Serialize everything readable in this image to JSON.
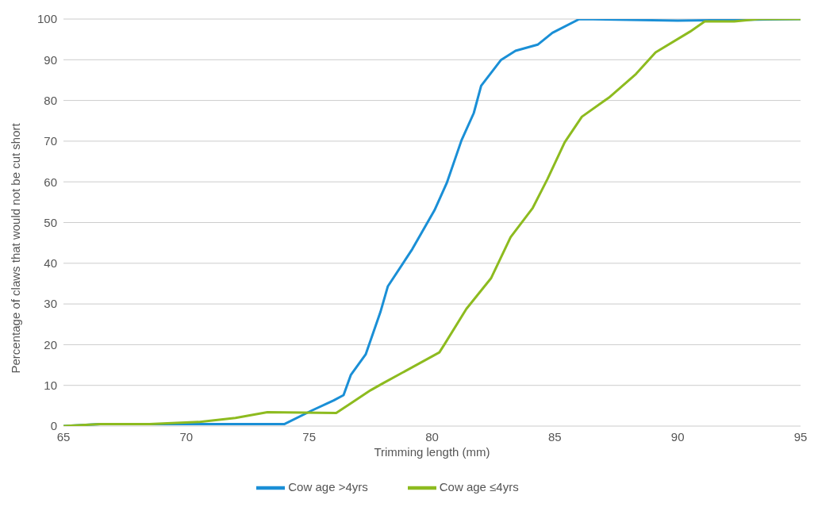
{
  "chart_data": {
    "type": "line",
    "xlabel": "Trimming length (mm)",
    "ylabel": "Percentage of claws that would not be cut short",
    "xlim": [
      65,
      95
    ],
    "xticks": [
      65,
      70,
      75,
      80,
      85,
      90,
      95
    ],
    "ylim": [
      0,
      100
    ],
    "yticks": [
      0,
      10,
      20,
      30,
      40,
      50,
      60,
      70,
      80,
      90,
      100
    ],
    "grid": "y",
    "legend": "bottom",
    "marker": "none",
    "line_style": "solid",
    "series": [
      {
        "name": "Cow age >4yrs",
        "color": "#1a8fd6",
        "x": [
          65,
          66.5,
          74,
          75.1,
          76,
          76.4,
          76.7,
          77.3,
          77.9,
          78.2,
          79.2,
          80.1,
          80.6,
          81.2,
          81.7,
          82,
          82.8,
          83.4,
          84.3,
          84.9,
          86,
          90,
          95
        ],
        "values": [
          0,
          0.5,
          0.5,
          3.8,
          6.3,
          7.6,
          12.6,
          17.6,
          28,
          34.3,
          43.5,
          53,
          59.7,
          70.2,
          76.9,
          83.6,
          89.9,
          92.2,
          93.7,
          96.6,
          100,
          99.6,
          100
        ]
      },
      {
        "name": "Cow age ≤4yrs",
        "color": "#8dbb1f",
        "x": [
          65,
          66.5,
          68.5,
          70.5,
          72,
          73.3,
          76.1,
          77.5,
          78,
          80.3,
          80.5,
          81.4,
          82.4,
          83.2,
          84.1,
          84.7,
          85.4,
          86.1,
          87.2,
          88.3,
          89.1,
          90.5,
          91.1,
          92.3,
          93.3,
          95
        ],
        "values": [
          0,
          0.5,
          0.5,
          1,
          2,
          3.4,
          3.2,
          8.8,
          10.5,
          18.1,
          20,
          28.8,
          36.3,
          46.4,
          53.6,
          60.7,
          69.7,
          76,
          80.7,
          86.5,
          91.8,
          96.9,
          99.4,
          99.4,
          100,
          100
        ]
      }
    ]
  }
}
